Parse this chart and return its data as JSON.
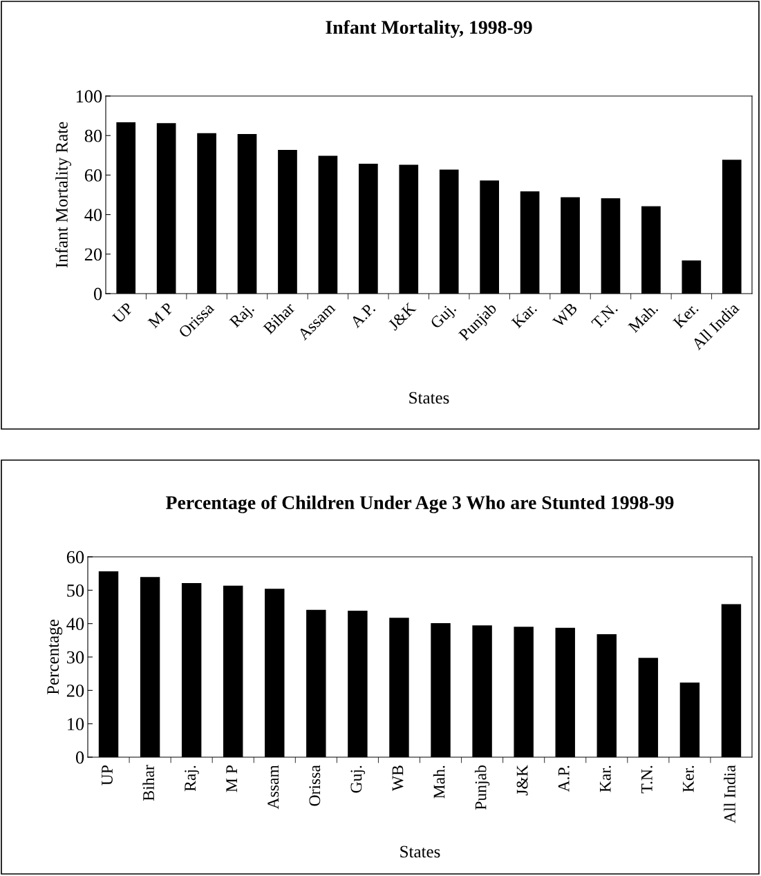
{
  "chart_data": [
    {
      "type": "bar",
      "title": "Infant Mortality, 1998-99",
      "xlabel": "States",
      "ylabel": "Infant Mortality Rate",
      "categories": [
        "UP",
        "M P",
        "Orissa",
        "Raj.",
        "Bihar",
        "Assam",
        "A.P.",
        "J&K",
        "Guj.",
        "Punjab",
        "Kar.",
        "WB",
        "T.N.",
        "Mah.",
        "Ker.",
        "All India"
      ],
      "values": [
        86.5,
        86,
        81,
        80.5,
        72.5,
        69.5,
        65.5,
        65,
        62.5,
        57,
        51.5,
        48.5,
        48,
        44,
        16.5,
        67.5
      ],
      "color": "#000000",
      "ylim": [
        0,
        100
      ],
      "yticks": [
        0,
        20,
        40,
        60,
        80,
        100
      ],
      "grid": false,
      "legend": false
    },
    {
      "type": "bar",
      "title": "Percentage of Children Under Age 3 Who are Stunted 1998-99",
      "xlabel": "States",
      "ylabel": "Percentage",
      "categories": [
        "UP",
        "Bihar",
        "Raj.",
        "M P",
        "Assam",
        "Orissa",
        "Guj.",
        "WB",
        "Mah.",
        "Punjab",
        "J&K",
        "A.P.",
        "Kar.",
        "T.N.",
        "Ker.",
        "All India"
      ],
      "values": [
        55.5,
        53.8,
        52,
        51.2,
        50.3,
        44,
        43.7,
        41.6,
        40,
        39.3,
        38.9,
        38.6,
        36.7,
        29.6,
        22.2,
        45.7
      ],
      "color": "#000000",
      "ylim": [
        0,
        60
      ],
      "yticks": [
        0,
        10,
        20,
        30,
        40,
        50,
        60
      ],
      "grid": false,
      "legend": false
    }
  ]
}
